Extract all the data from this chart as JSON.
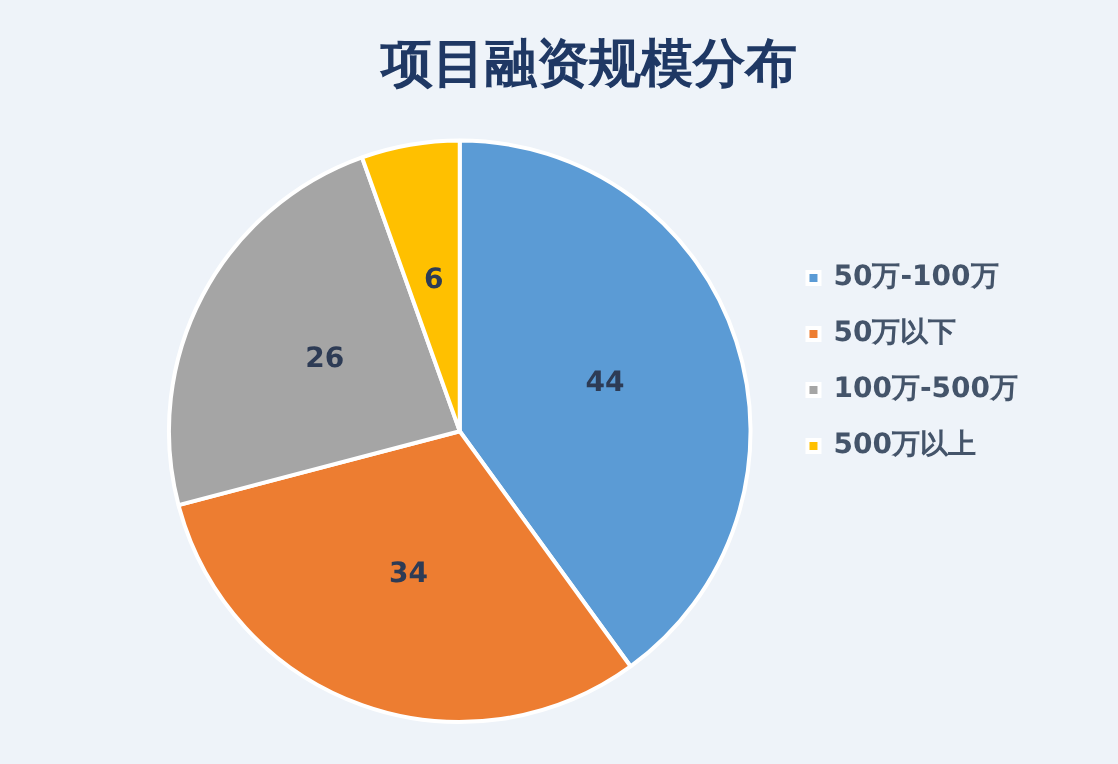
{
  "chart_data": {
    "type": "pie",
    "title": "项目融资规模分布",
    "categories": [
      "50万-100万",
      "50万以下",
      "100万-500万",
      "500万以上"
    ],
    "values": [
      44,
      34,
      26,
      6
    ],
    "colors": [
      "#5b9bd5",
      "#ed7d31",
      "#a5a5a5",
      "#ffc000"
    ],
    "data_labels": true,
    "legend": "right"
  }
}
